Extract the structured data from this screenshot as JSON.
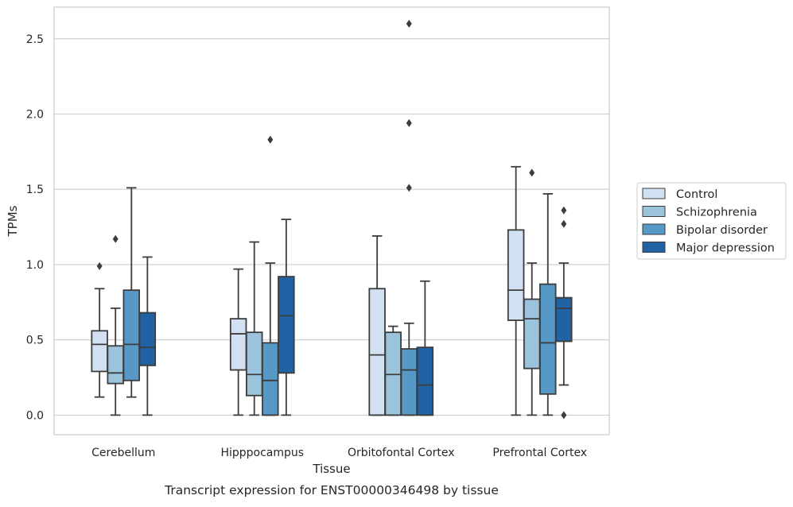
{
  "chart_data": {
    "type": "boxplot",
    "caption": "Transcript expression for ENST00000346498 by tissue",
    "xlabel": "Tissue",
    "ylabel": "TPMs",
    "ylim": [
      -0.13,
      2.71
    ],
    "yticks": [
      0.0,
      0.5,
      1.0,
      1.5,
      2.0,
      2.5
    ],
    "ytick_labels": [
      "0.0",
      "0.5",
      "1.0",
      "1.5",
      "2.0",
      "2.5"
    ],
    "grid": "horizontal",
    "legend_position": "right",
    "categories": [
      "Cerebellum",
      "Hipppocampus",
      "Orbitofontal Cortex",
      "Prefrontal Cortex"
    ],
    "series": [
      {
        "name": "Control",
        "color": "#d1e1f1",
        "boxes": [
          {
            "whislo": 0.12,
            "q1": 0.29,
            "med": 0.47,
            "q3": 0.56,
            "whishi": 0.84,
            "fliers": [
              0.99
            ]
          },
          {
            "whislo": 0.0,
            "q1": 0.3,
            "med": 0.54,
            "q3": 0.64,
            "whishi": 0.97,
            "fliers": []
          },
          {
            "whislo": 0.0,
            "q1": 0.0,
            "med": 0.4,
            "q3": 0.84,
            "whishi": 1.19,
            "fliers": []
          },
          {
            "whislo": 0.0,
            "q1": 0.63,
            "med": 0.83,
            "q3": 1.23,
            "whishi": 1.65,
            "fliers": []
          }
        ]
      },
      {
        "name": "Schizophrenia",
        "color": "#9bc4dc",
        "boxes": [
          {
            "whislo": 0.0,
            "q1": 0.21,
            "med": 0.28,
            "q3": 0.46,
            "whishi": 0.71,
            "fliers": [
              1.17
            ]
          },
          {
            "whislo": 0.0,
            "q1": 0.13,
            "med": 0.27,
            "q3": 0.55,
            "whishi": 1.15,
            "fliers": []
          },
          {
            "whislo": 0.0,
            "q1": 0.0,
            "med": 0.27,
            "q3": 0.55,
            "whishi": 0.59,
            "fliers": []
          },
          {
            "whislo": 0.0,
            "q1": 0.31,
            "med": 0.64,
            "q3": 0.77,
            "whishi": 1.01,
            "fliers": [
              1.61
            ]
          }
        ]
      },
      {
        "name": "Bipolar disorder",
        "color": "#5698c6",
        "boxes": [
          {
            "whislo": 0.12,
            "q1": 0.23,
            "med": 0.47,
            "q3": 0.83,
            "whishi": 1.51,
            "fliers": []
          },
          {
            "whislo": 0.0,
            "q1": 0.0,
            "med": 0.23,
            "q3": 0.48,
            "whishi": 1.01,
            "fliers": [
              1.83
            ]
          },
          {
            "whislo": 0.0,
            "q1": 0.0,
            "med": 0.3,
            "q3": 0.44,
            "whishi": 0.61,
            "fliers": [
              1.51,
              1.94,
              2.6
            ]
          },
          {
            "whislo": 0.0,
            "q1": 0.14,
            "med": 0.48,
            "q3": 0.87,
            "whishi": 1.47,
            "fliers": []
          }
        ]
      },
      {
        "name": "Major depression",
        "color": "#2062a3",
        "boxes": [
          {
            "whislo": 0.0,
            "q1": 0.33,
            "med": 0.45,
            "q3": 0.68,
            "whishi": 1.05,
            "fliers": []
          },
          {
            "whislo": 0.0,
            "q1": 0.28,
            "med": 0.66,
            "q3": 0.92,
            "whishi": 1.3,
            "fliers": []
          },
          {
            "whislo": 0.0,
            "q1": 0.0,
            "med": 0.2,
            "q3": 0.45,
            "whishi": 0.89,
            "fliers": []
          },
          {
            "whislo": 0.2,
            "q1": 0.49,
            "med": 0.71,
            "q3": 0.78,
            "whishi": 1.01,
            "fliers": [
              0.0,
              1.27,
              1.36
            ]
          }
        ]
      }
    ]
  }
}
